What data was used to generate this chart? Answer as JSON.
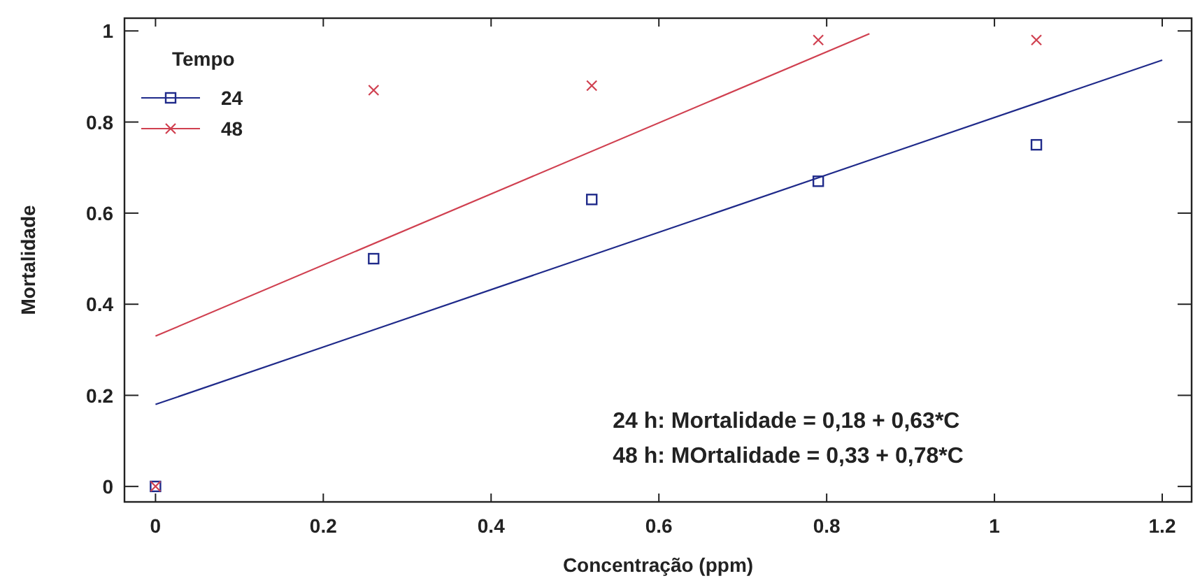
{
  "chart_data": {
    "type": "scatter",
    "xlabel": "Concentração (ppm)",
    "ylabel": "Mortalidade",
    "legend_title": "Tempo",
    "legend": "top left",
    "grid": false,
    "xlim": [
      -0.037,
      1.235
    ],
    "xticks": [
      0,
      0.2,
      0.4,
      0.6,
      0.8,
      1,
      1.2
    ],
    "ylim": [
      -0.034,
      1.028
    ],
    "yticks": [
      0,
      0.2,
      0.4,
      0.6,
      0.8,
      1
    ],
    "series": [
      {
        "name": "24",
        "marker": "square",
        "color": "#1f2a8a",
        "x": [
          0,
          0.26,
          0.52,
          0.79,
          1.05
        ],
        "values": [
          0,
          0.5,
          0.63,
          0.67,
          0.75
        ]
      },
      {
        "name": "48",
        "marker": "cross",
        "color": "#d04050",
        "x": [
          0,
          0.26,
          0.52,
          0.79,
          1.05
        ],
        "values": [
          0,
          0.87,
          0.88,
          0.98,
          0.98
        ]
      },
      {
        "type": "line",
        "marker": "none",
        "color": "#1f2a8a",
        "x": [
          0,
          1.2
        ],
        "values": [
          0.18,
          0.936
        ]
      },
      {
        "type": "line",
        "marker": "none",
        "color": "#d04050",
        "x": [
          0,
          0.851
        ],
        "values": [
          0.33,
          0.994
        ]
      }
    ],
    "annotations": [
      "24 h: Mortalidade = 0,18 + 0,63*C",
      "48 h: MOrtalidade = 0,33 + 0,78*C"
    ]
  }
}
